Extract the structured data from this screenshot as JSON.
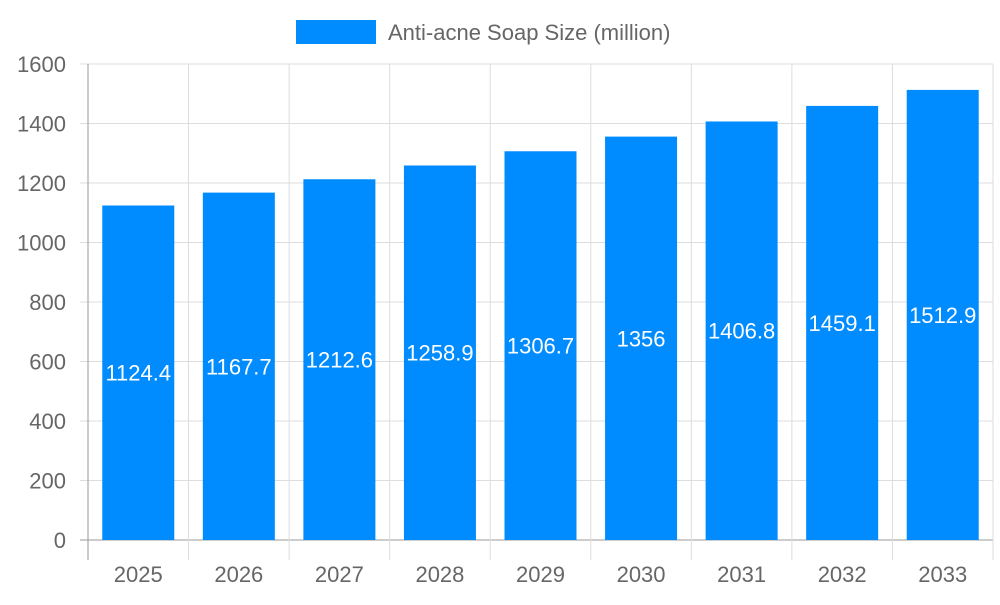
{
  "chart_data": {
    "type": "bar",
    "title": "",
    "xlabel": "",
    "ylabel": "",
    "categories": [
      "2025",
      "2026",
      "2027",
      "2028",
      "2029",
      "2030",
      "2031",
      "2032",
      "2033"
    ],
    "series": [
      {
        "name": "Anti-acne Soap Size (million)",
        "values": [
          1124.4,
          1167.7,
          1212.6,
          1258.9,
          1306.7,
          1356,
          1406.8,
          1459.1,
          1512.9
        ],
        "color": "#008cff"
      }
    ],
    "ylim": [
      0,
      1600
    ],
    "yticks": [
      0,
      200,
      400,
      600,
      800,
      1000,
      1200,
      1400,
      1600
    ],
    "grid": true,
    "legend": "top-center",
    "data_labels": true
  }
}
